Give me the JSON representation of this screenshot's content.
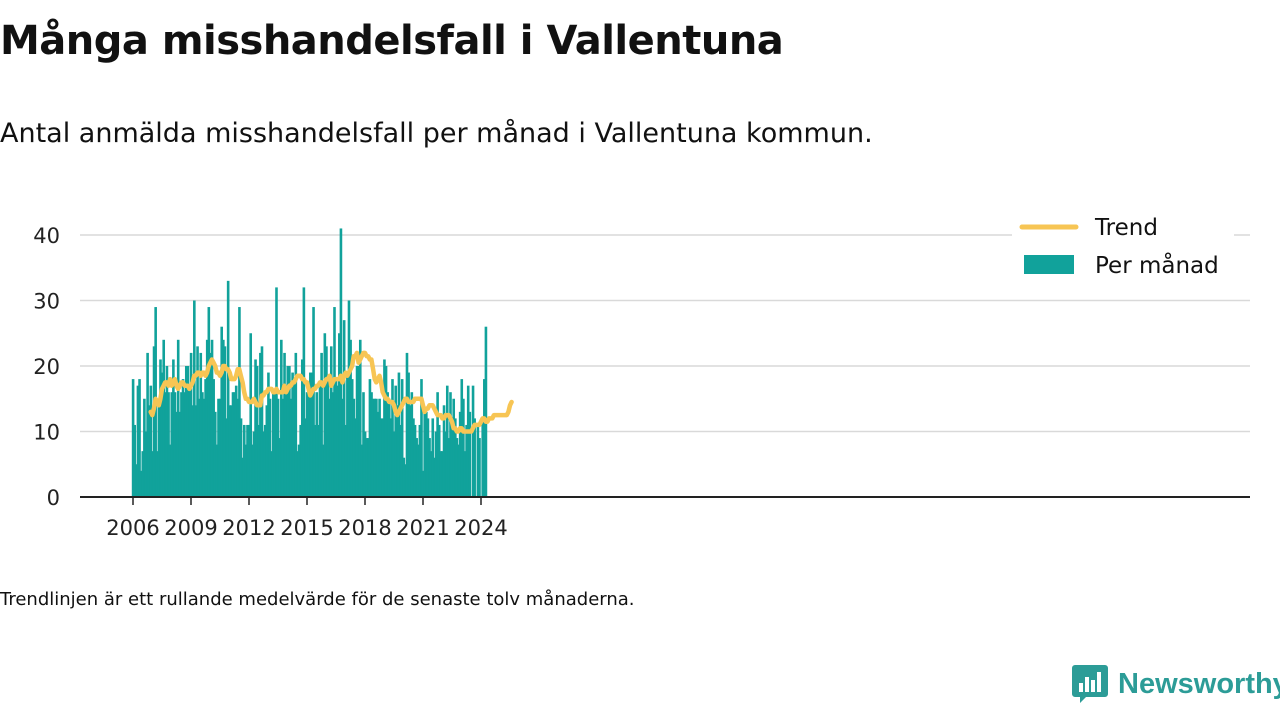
{
  "header": {
    "title": "Många misshandelsfall i Vallentuna",
    "subtitle": "Antal anmälda misshandelsfall per månad i Vallentuna kommun."
  },
  "footer": {
    "note": "Trendlinjen är ett rullande medelvärde för de senaste tolv månaderna."
  },
  "logo": {
    "text": "Newsworthy",
    "color": "#2c9c97"
  },
  "colors": {
    "bar": "#11a29b",
    "trend": "#f7c554",
    "grid": "#d9d9d9",
    "axis": "#222222"
  },
  "chart_data": {
    "type": "bar",
    "start": "2006-01",
    "frequency": "monthly",
    "ylim": [
      0,
      45
    ],
    "yticks": [
      0,
      10,
      20,
      30,
      40
    ],
    "xticks": [
      "2006",
      "2009",
      "2012",
      "2015",
      "2018",
      "2021",
      "2024"
    ],
    "grid": true,
    "legend_placement": "top-right",
    "series": [
      {
        "name": "Per månad",
        "kind": "bar",
        "values": [
          18,
          11,
          5,
          17,
          18,
          4,
          7,
          15,
          10,
          22,
          14,
          17,
          7,
          23,
          29,
          7,
          14,
          21,
          19,
          24,
          16,
          20,
          16,
          8,
          16,
          21,
          16,
          13,
          24,
          13,
          16,
          18,
          16,
          20,
          20,
          17,
          22,
          14,
          30,
          14,
          23,
          15,
          22,
          16,
          15,
          18,
          24,
          29,
          22,
          24,
          18,
          13,
          8,
          15,
          15,
          26,
          24,
          23,
          12,
          33,
          14,
          14,
          16,
          16,
          17,
          15,
          29,
          12,
          6,
          11,
          8,
          11,
          11,
          25,
          8,
          10,
          21,
          20,
          11,
          22,
          23,
          10,
          11,
          14,
          19,
          15,
          7,
          16,
          16,
          32,
          15,
          9,
          24,
          15,
          22,
          16,
          20,
          20,
          15,
          19,
          18,
          22,
          7,
          8,
          11,
          21,
          32,
          12,
          16,
          16,
          19,
          19,
          29,
          11,
          16,
          11,
          17,
          22,
          8,
          25,
          23,
          18,
          15,
          23,
          16,
          29,
          18,
          17,
          25,
          41,
          15,
          27,
          11,
          19,
          30,
          24,
          18,
          15,
          12,
          20,
          20,
          24,
          8,
          16,
          10,
          9,
          9,
          18,
          16,
          15,
          15,
          15,
          13,
          15,
          12,
          12,
          21,
          20,
          16,
          15,
          12,
          18,
          10,
          17,
          14,
          19,
          11,
          18,
          6,
          5,
          22,
          19,
          14,
          16,
          12,
          11,
          9,
          8,
          11,
          18,
          4,
          13,
          13,
          12,
          9,
          7,
          12,
          6,
          10,
          16,
          11,
          7,
          7,
          14,
          10,
          17,
          9,
          16,
          11,
          15,
          12,
          9,
          8,
          13,
          18,
          15,
          7,
          11,
          17,
          13,
          0,
          17,
          12,
          0,
          11,
          9,
          0,
          12,
          18,
          26
        ]
      },
      {
        "name": "Trend",
        "kind": "line",
        "start_index": 11,
        "values": [
          13,
          12.5,
          13.5,
          15,
          14.5,
          14,
          15,
          16.5,
          17,
          17.5,
          17.5,
          17,
          18,
          17,
          17.5,
          18,
          17,
          16.5,
          17,
          17.5,
          17.5,
          17,
          17,
          17,
          16.5,
          17,
          17.5,
          18.5,
          18.5,
          19,
          19,
          18.5,
          19,
          19,
          18.5,
          19,
          20,
          20.5,
          21,
          20.5,
          20,
          19,
          19,
          18.5,
          19,
          20,
          20,
          19.5,
          19.5,
          19,
          18,
          18,
          18,
          18.5,
          19.5,
          19.5,
          18.5,
          17.5,
          16,
          15,
          15,
          14.5,
          14.5,
          14.5,
          15,
          14.5,
          14,
          14,
          14,
          15.5,
          15.5,
          16,
          16,
          16.5,
          16.5,
          16.5,
          16,
          16,
          16.5,
          16,
          16,
          16,
          16,
          17,
          16,
          16.5,
          17,
          17,
          17.5,
          17.5,
          18,
          18.5,
          18.5,
          18.5,
          18,
          18,
          17.5,
          17.5,
          16.5,
          15.5,
          16,
          16.5,
          16.5,
          17,
          17,
          17.5,
          17.5,
          17,
          17.5,
          18,
          18,
          18.5,
          17,
          17.5,
          18,
          18,
          18,
          18,
          18.5,
          17.5,
          18.5,
          19,
          18.5,
          19,
          19.5,
          20,
          21.5,
          21.5,
          22,
          20.5,
          21,
          21.5,
          22,
          22,
          21.5,
          21.5,
          21,
          21,
          19.5,
          18,
          17.5,
          18,
          18.5,
          17.5,
          16,
          15.5,
          15,
          15,
          14.5,
          14.5,
          14.5,
          14,
          13,
          12.5,
          13,
          13.5,
          14,
          14.5,
          15,
          15,
          14.5,
          14.5,
          14.5,
          14.5,
          15,
          15,
          15,
          15,
          15,
          14,
          13,
          13.5,
          13.5,
          14,
          14,
          14,
          13.5,
          13,
          12.5,
          12.5,
          12.5,
          12,
          12,
          12.5,
          12.5,
          12.5,
          12,
          11.5,
          10.5,
          10.5,
          10,
          10,
          10.5,
          10.5,
          10,
          10,
          10,
          10,
          10,
          10,
          10.5,
          11,
          11,
          11,
          11,
          11.5,
          12,
          12,
          11.5,
          11.5,
          12,
          12,
          12,
          12.5,
          12.5,
          12.5,
          12.5,
          12.5,
          12.5,
          12.5,
          12.5,
          12.5,
          13,
          14,
          14.5
        ]
      }
    ]
  }
}
